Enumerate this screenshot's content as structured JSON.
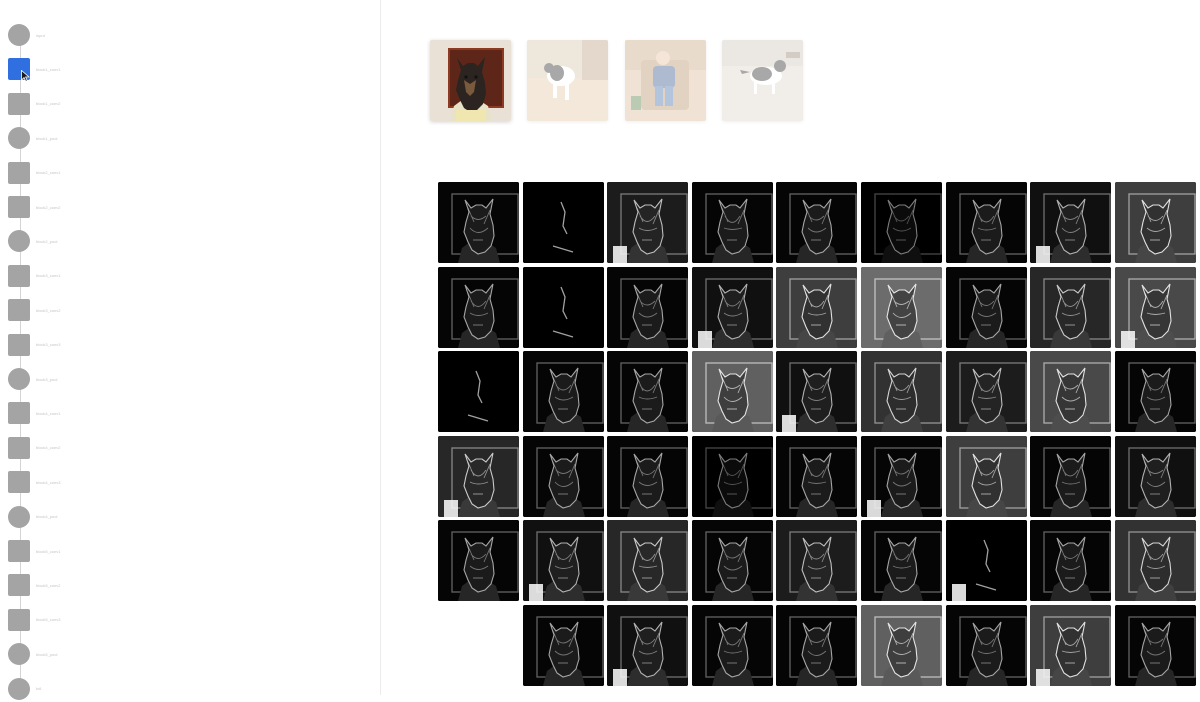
{
  "layer_panel": {
    "selected_index": 1,
    "layers": [
      {
        "label": "input",
        "shape": "circle"
      },
      {
        "label": "block1_conv1",
        "shape": "square"
      },
      {
        "label": "block1_conv2",
        "shape": "square"
      },
      {
        "label": "block1_pool",
        "shape": "circle"
      },
      {
        "label": "block2_conv1",
        "shape": "square"
      },
      {
        "label": "block2_conv2",
        "shape": "square"
      },
      {
        "label": "block2_pool",
        "shape": "circle"
      },
      {
        "label": "block3_conv1",
        "shape": "square"
      },
      {
        "label": "block3_conv2",
        "shape": "square"
      },
      {
        "label": "block3_conv3",
        "shape": "square"
      },
      {
        "label": "block3_pool",
        "shape": "circle"
      },
      {
        "label": "block4_conv1",
        "shape": "square"
      },
      {
        "label": "block4_conv2",
        "shape": "square"
      },
      {
        "label": "block4_conv3",
        "shape": "square"
      },
      {
        "label": "block4_pool",
        "shape": "circle"
      },
      {
        "label": "block5_conv1",
        "shape": "square"
      },
      {
        "label": "block5_conv2",
        "shape": "square"
      },
      {
        "label": "block5_conv3",
        "shape": "square"
      },
      {
        "label": "block5_pool",
        "shape": "circle"
      },
      {
        "label": "fc6",
        "shape": "circle"
      }
    ]
  },
  "input_images": [
    {
      "name": "dog-portrait-image",
      "selected": true
    },
    {
      "name": "dog-on-floor-image",
      "selected": false
    },
    {
      "name": "child-in-chair-image",
      "selected": false
    },
    {
      "name": "dog-walking-image",
      "selected": false
    }
  ],
  "activation_grid": {
    "rows": [
      [
        0.3,
        0.05,
        0.4,
        0.3,
        0.3,
        0.12,
        0.3,
        0.35,
        0.55
      ],
      [
        0.3,
        0.06,
        0.3,
        0.35,
        0.55,
        0.75,
        0.3,
        0.45,
        0.6
      ],
      [
        0.04,
        0.3,
        0.3,
        0.7,
        0.35,
        0.5,
        0.4,
        0.6,
        0.3
      ],
      [
        0.45,
        0.3,
        0.3,
        0.12,
        0.3,
        0.3,
        0.55,
        0.3,
        0.35
      ],
      [
        0.3,
        0.35,
        0.45,
        0.3,
        0.4,
        0.3,
        0.03,
        0.3,
        0.5
      ],
      [
        null,
        0.3,
        0.35,
        0.3,
        0.3,
        0.7,
        0.3,
        0.55,
        0.3
      ]
    ]
  }
}
